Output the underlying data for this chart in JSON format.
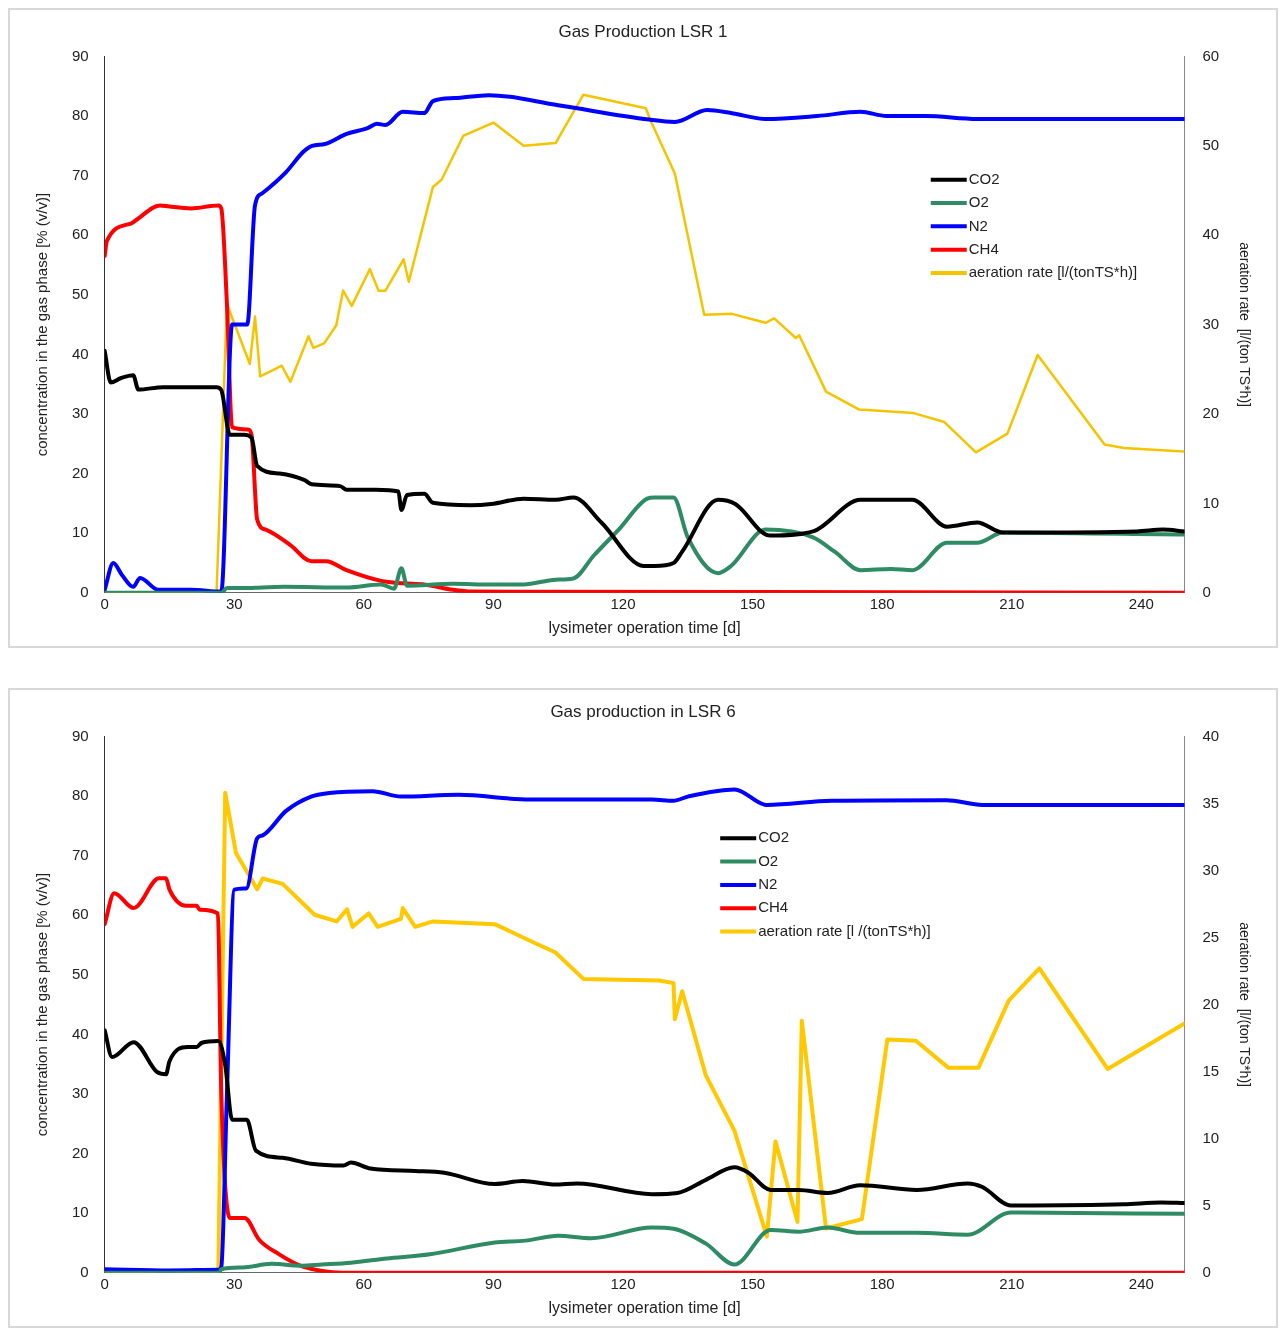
{
  "chart_data": [
    {
      "type": "line",
      "title": "Gas Production LSR 1",
      "xlabel": "lysimeter operation time [d]",
      "ylabel": "concentration in the gas phase [% (v/v)]",
      "y2label": "aeration rate  [l/(ton TS*h)]",
      "xlim": [
        0,
        250
      ],
      "xticks": [
        0,
        30,
        60,
        90,
        120,
        150,
        180,
        210,
        240
      ],
      "ylim": [
        0,
        90
      ],
      "yticks": [
        0,
        10,
        20,
        30,
        40,
        50,
        60,
        70,
        80,
        90
      ],
      "y2lim": [
        0,
        60
      ],
      "y2ticks": [
        0,
        10,
        20,
        30,
        40,
        50,
        60
      ],
      "grid": false,
      "legend": "top right",
      "marker": "none",
      "line_style": "solid",
      "series": [
        {
          "name": "CO2",
          "color": "#000000",
          "x": [
            0,
            1.4,
            3.7,
            6.6,
            7.8,
            13.5,
            25.9,
            27,
            29,
            32.3,
            34,
            35.3,
            40.5,
            46.3,
            47.9,
            54.5,
            56,
            62.8,
            68,
            68.7,
            70,
            74,
            76,
            84.7,
            89.5,
            97,
            104.4,
            108.5,
            115,
            124.8,
            127.3,
            131.7,
            133.7,
            142,
            146,
            154,
            164,
            175,
            187,
            195,
            202,
            208,
            239,
            245,
            250
          ],
          "values": [
            40.6,
            35.3,
            36,
            36.5,
            34.1,
            34.5,
            34.5,
            34,
            26.5,
            26.5,
            26,
            21.3,
            20,
            18.9,
            18.2,
            17.9,
            17.3,
            17.3,
            17,
            13.9,
            16.4,
            16.6,
            15.1,
            14.7,
            14.9,
            15.8,
            15.6,
            16,
            11.8,
            4.5,
            4.5,
            5,
            6.9,
            15.6,
            14.9,
            9.6,
            10.3,
            15.6,
            15.6,
            11.1,
            11.8,
            10.1,
            10.3,
            10.6,
            10.3
          ]
        },
        {
          "name": "O2",
          "color": "#2e8b64",
          "x": [
            0,
            27,
            28.3,
            31.6,
            41.5,
            56,
            64,
            67,
            68.7,
            70,
            80.6,
            89.5,
            97,
            104.4,
            108.5,
            113.3,
            119,
            125.6,
            127.3,
            131.7,
            135,
            142,
            145,
            153,
            164,
            169,
            175,
            182,
            187,
            195,
            202,
            208,
            250
          ],
          "values": [
            0,
            0,
            0.8,
            0.8,
            1,
            0.9,
            1.4,
            0.7,
            4.1,
            1.2,
            1.5,
            1.4,
            1.4,
            2.2,
            2.4,
            6.3,
            10.6,
            15.8,
            16,
            16,
            9.3,
            3.3,
            4.5,
            10.6,
            9.3,
            6.9,
            3.8,
            4,
            3.8,
            8.4,
            8.4,
            10.1,
            9.8
          ]
        },
        {
          "name": "N2",
          "color": "#0000ff",
          "x": [
            0,
            2,
            4,
            6.6,
            8.2,
            12.4,
            20,
            27,
            29.5,
            33,
            34.8,
            36.4,
            42,
            46,
            48,
            51,
            56,
            61,
            63,
            65,
            69,
            74,
            76,
            81,
            89,
            105,
            126,
            132,
            139.5,
            145,
            153,
            165,
            175,
            181,
            190,
            202,
            250
          ],
          "values": [
            0.5,
            5,
            3,
            1,
            2.5,
            0.5,
            0.5,
            0.2,
            45,
            45,
            65,
            67,
            70.6,
            74,
            75,
            75.3,
            77,
            78,
            78.7,
            78.5,
            80.7,
            80.5,
            82.5,
            83,
            83.5,
            81.8,
            79.4,
            79,
            81,
            80.5,
            79.5,
            80,
            80.7,
            80,
            80,
            79.5,
            79.5
          ]
        },
        {
          "name": "CH4",
          "color": "#ff0000",
          "x": [
            0,
            0.5,
            6.2,
            7.4,
            12.8,
            15,
            20,
            26.3,
            27,
            28.3,
            29.5,
            33.2,
            34,
            35.3,
            37.3,
            43,
            47.9,
            51.3,
            56,
            64,
            69,
            74,
            80.6,
            85,
            250
          ],
          "values": [
            56.5,
            59,
            62,
            62.6,
            65,
            64.8,
            64.5,
            65,
            64.5,
            48.5,
            27.8,
            27.4,
            26.5,
            12.3,
            10.6,
            8,
            5.3,
            5.3,
            3.8,
            2,
            1.6,
            1.4,
            0.5,
            0.2,
            0
          ]
        },
        {
          "name": "aeration rate [l/(tonTS*h)]",
          "color": "#f5c400",
          "axis": "y2",
          "x": [
            0,
            25.9,
            28.3,
            33.6,
            34.8,
            36,
            39.3,
            41,
            43,
            47.2,
            48.3,
            50.8,
            53.6,
            55.2,
            57.2,
            61.4,
            63.4,
            65,
            69.2,
            70.4,
            76,
            78,
            83,
            90,
            97,
            104.4,
            110.8,
            125.3,
            126.4,
            132,
            138.8,
            145.2,
            153,
            155,
            160,
            160.8,
            167,
            174.7,
            187.3,
            194.4,
            201.7,
            209,
            216,
            231.5,
            236,
            249.8
          ],
          "values": [
            0,
            0,
            32.3,
            25.6,
            30.9,
            24.2,
            25,
            25.4,
            23.6,
            28.7,
            27.4,
            27.9,
            29.9,
            33.8,
            32.1,
            36.2,
            33.8,
            33.8,
            37.3,
            34.8,
            45.4,
            46.2,
            51.1,
            52.6,
            50,
            50.3,
            55.7,
            54.2,
            52.8,
            46.9,
            31.1,
            31.2,
            30.2,
            30.7,
            28.5,
            28.8,
            22.5,
            20.5,
            20.1,
            19.1,
            15.7,
            17.8,
            26.6,
            16.6,
            16.2,
            15.8
          ]
        }
      ]
    },
    {
      "type": "line",
      "title": "Gas production in LSR 6",
      "xlabel": "lysimeter operation time [d]",
      "ylabel": "concentration in the gas phase [% (v/v)]",
      "y2label": "aeration rate  [l/(ton TS*h)]",
      "xlim": [
        0,
        250
      ],
      "xticks": [
        0,
        30,
        60,
        90,
        120,
        150,
        180,
        210,
        240
      ],
      "ylim": [
        0,
        90
      ],
      "yticks": [
        0,
        10,
        20,
        30,
        40,
        50,
        60,
        70,
        80,
        90
      ],
      "y2lim": [
        0,
        40
      ],
      "y2ticks": [
        0,
        5,
        10,
        15,
        20,
        25,
        30,
        35,
        40
      ],
      "grid": false,
      "legend": "top",
      "marker": "none",
      "line_style": "solid",
      "series": [
        {
          "name": "CO2",
          "color": "#000000",
          "x": [
            0,
            1.7,
            6.7,
            12.1,
            14.2,
            15,
            19.2,
            21.3,
            22.5,
            26.3,
            27.9,
            29.5,
            32.9,
            35,
            41.2,
            47.8,
            55.3,
            57,
            61.5,
            71.9,
            78.6,
            90.3,
            96.8,
            104.3,
            109.3,
            126.7,
            132.6,
            139.2,
            145.8,
            149,
            154.2,
            160.7,
            167.4,
            174.9,
            188,
            199.8,
            203.2,
            209.8,
            236,
            244.6,
            250
          ],
          "values": [
            40.7,
            36.2,
            38.7,
            33.7,
            33.3,
            35.5,
            37.9,
            37.9,
            38.6,
            38.9,
            34.9,
            25.7,
            25.7,
            20.5,
            19.3,
            18.3,
            18,
            18.5,
            17.5,
            17.1,
            16.8,
            14.9,
            15.4,
            14.8,
            15,
            13.2,
            13.4,
            15.6,
            17.7,
            16.8,
            13.9,
            13.9,
            13.4,
            14.7,
            13.9,
            15,
            14.4,
            11.3,
            11.5,
            11.8,
            11.7
          ]
        },
        {
          "name": "O2",
          "color": "#2e8b64",
          "x": [
            0,
            26.5,
            27,
            32,
            38.6,
            45.3,
            50.3,
            57,
            65.3,
            75.3,
            90.3,
            97.4,
            105,
            112.6,
            126.7,
            131.7,
            139.2,
            145.8,
            154.2,
            160.7,
            167.4,
            174.9,
            188,
            199.8,
            209.8,
            250
          ],
          "values": [
            0,
            0,
            0.6,
            0.9,
            1.5,
            1.2,
            1.4,
            1.7,
            2.4,
            3.1,
            5.1,
            5.4,
            6.2,
            5.8,
            7.6,
            7.4,
            4.9,
            1.4,
            7.2,
            6.9,
            7.6,
            6.7,
            6.7,
            6.4,
            10.1,
            9.9
          ]
        },
        {
          "name": "N2",
          "color": "#0000ff",
          "x": [
            0,
            15,
            26.3,
            27,
            28.3,
            30,
            32.8,
            35.3,
            36.6,
            42,
            47.8,
            52,
            62,
            68.6,
            81.9,
            98.5,
            126.7,
            131.7,
            135,
            145.8,
            153.3,
            168.3,
            194.9,
            203.2,
            250
          ],
          "values": [
            0.6,
            0.4,
            0.5,
            1,
            30,
            64.3,
            64.5,
            72.9,
            73.4,
            77.5,
            79.9,
            80.5,
            80.8,
            79.9,
            80.2,
            79.4,
            79.4,
            79.2,
            79.9,
            81.1,
            78.5,
            79.2,
            79.3,
            78.5,
            78.5
          ]
        },
        {
          "name": "CH4",
          "color": "#ff0000",
          "x": [
            0,
            2.2,
            6.7,
            12.6,
            14.2,
            15,
            18.8,
            21.3,
            22,
            26.2,
            27,
            29,
            32.4,
            35.8,
            40.4,
            45.3,
            50.3,
            55,
            250
          ],
          "values": [
            58.5,
            63.7,
            61.2,
            66.2,
            66.2,
            64.3,
            61.6,
            61.6,
            60.9,
            60.3,
            30,
            9.2,
            9.2,
            5.5,
            3.1,
            1.2,
            0.3,
            0,
            0
          ]
        },
        {
          "name": "aeration rate [l /(tonTS*h)]",
          "color": "#ffc800",
          "axis": "y2",
          "x": [
            0,
            26.3,
            27.9,
            30.4,
            35.3,
            36.6,
            41.2,
            47,
            48.6,
            53.7,
            56.1,
            57.4,
            61.1,
            63.2,
            68.6,
            69,
            71.9,
            76,
            90.3,
            100.2,
            104.3,
            110.9,
            128.4,
            131.7,
            132,
            133.7,
            139.2,
            145.8,
            153.3,
            155.3,
            160.4,
            161.4,
            167,
            175.3,
            181.2,
            187.8,
            195.3,
            202.3,
            209.3,
            216.4,
            232.2,
            250
          ],
          "values": [
            0,
            0,
            35.8,
            31.3,
            28.6,
            29.4,
            29,
            27.2,
            26.7,
            26.2,
            27.1,
            25.8,
            26.8,
            25.8,
            26.4,
            27.2,
            25.8,
            26.2,
            26,
            24.5,
            23.9,
            21.9,
            21.8,
            21.6,
            18.9,
            21,
            14.7,
            10.6,
            2.7,
            9.8,
            3.8,
            18.8,
            3.3,
            4,
            17.4,
            17.3,
            15.3,
            15.3,
            20.3,
            22.7,
            15.2,
            18.6
          ]
        }
      ]
    }
  ]
}
